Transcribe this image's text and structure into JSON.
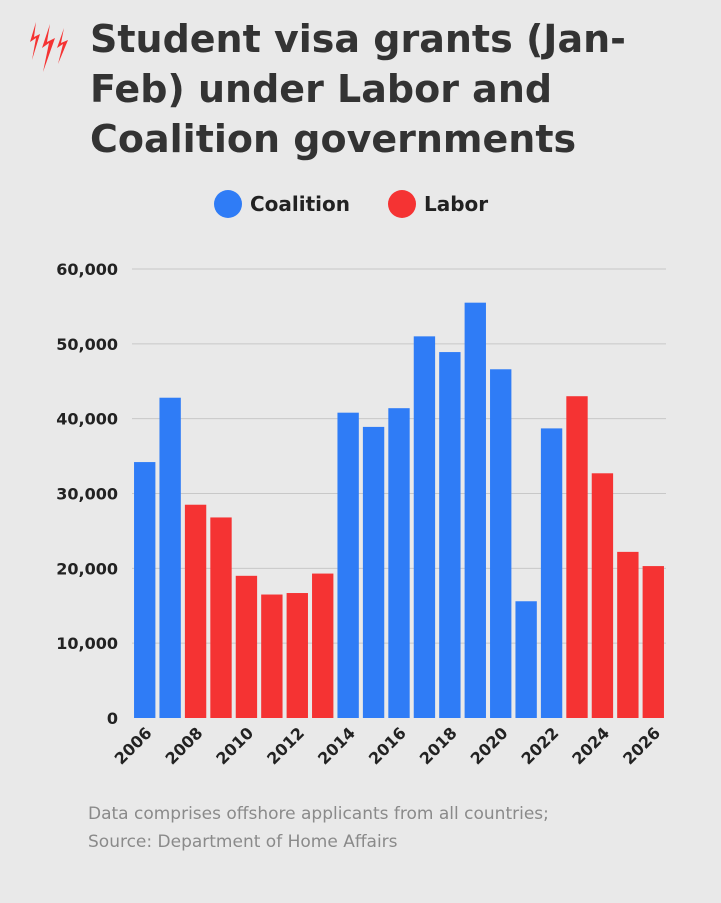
{
  "header": {
    "logo_icon": "sbs-logo-icon",
    "title": "Student visa grants (Jan-Feb) under Labor and Coalition governments"
  },
  "legend": {
    "items": [
      {
        "label": "Coalition",
        "color": "#2f7cf6"
      },
      {
        "label": "Labor",
        "color": "#f53333"
      }
    ]
  },
  "chart_data": {
    "type": "bar",
    "title": "Student visa grants (Jan-Feb) under Labor and Coalition governments",
    "xlabel": "",
    "ylabel": "",
    "ylim": [
      0,
      60000
    ],
    "yticks": [
      "0",
      "10,000",
      "20,000",
      "30,000",
      "40,000",
      "50,000",
      "60,000"
    ],
    "grid": true,
    "legend_position": "top",
    "x_tick_labels": [
      "2006",
      "2008",
      "2010",
      "2012",
      "2014",
      "2016",
      "2018",
      "2020",
      "2022",
      "2024",
      "2026"
    ],
    "categories": [
      "2006",
      "2007",
      "2008",
      "2009",
      "2010",
      "2011",
      "2012",
      "2013",
      "2014",
      "2015",
      "2016",
      "2017",
      "2018",
      "2019",
      "2020",
      "2021",
      "2022",
      "2023",
      "2024",
      "2025",
      "2026"
    ],
    "series": [
      {
        "name": "Coalition",
        "color": "#2f7cf6",
        "values": [
          34200,
          42800,
          null,
          null,
          null,
          null,
          null,
          null,
          40800,
          38900,
          41400,
          51000,
          48900,
          55500,
          46600,
          15600,
          38700,
          null,
          null,
          null,
          null
        ]
      },
      {
        "name": "Labor",
        "color": "#f53333",
        "values": [
          null,
          null,
          28500,
          26800,
          19000,
          16500,
          16700,
          19300,
          null,
          null,
          null,
          null,
          null,
          null,
          null,
          null,
          null,
          43000,
          32700,
          22200,
          20300
        ]
      }
    ]
  },
  "footnote": {
    "line1": "Data comprises offshore applicants from all countries;",
    "line2": "Source: Department of Home Affairs"
  }
}
